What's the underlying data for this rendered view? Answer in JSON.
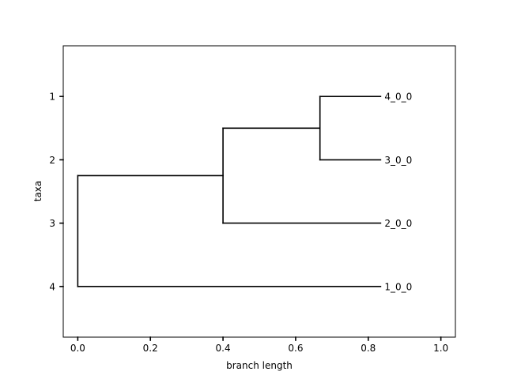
{
  "figure": {
    "xlabel": "branch length",
    "ylabel": "taxa",
    "x_ticks": [
      "0.0",
      "0.2",
      "0.4",
      "0.6",
      "0.8",
      "1.0"
    ],
    "y_ticks": [
      "1",
      "2",
      "3",
      "4"
    ],
    "colors": {
      "line": "#000000",
      "background": "#ffffff"
    }
  },
  "tree": {
    "xlim": [
      -0.04,
      1.04
    ],
    "ylim": [
      4.8,
      0.2
    ],
    "x_tick_values": [
      0.0,
      0.2,
      0.4,
      0.6,
      0.8,
      1.0
    ],
    "y_tick_values": [
      1,
      2,
      3,
      4
    ],
    "leaves": [
      {
        "label": "4_0_0",
        "y": 1,
        "x": 0.834
      },
      {
        "label": "3_0_0",
        "y": 2,
        "x": 0.834
      },
      {
        "label": "2_0_0",
        "y": 3,
        "x": 0.834
      },
      {
        "label": "1_0_0",
        "y": 4,
        "x": 0.834
      }
    ],
    "nodes": [
      {
        "id": "n_43",
        "x": 0.667,
        "y_min": 1,
        "y_max": 2,
        "y": 1.5
      },
      {
        "id": "n_432",
        "x": 0.4,
        "y_min": 1.5,
        "y_max": 3,
        "y": 2.25
      },
      {
        "id": "root",
        "x": 0.0,
        "y_min": 2.25,
        "y_max": 4,
        "y": 3.125
      }
    ],
    "branches": [
      {
        "from_x": 0.667,
        "to_x": 0.834,
        "y": 1
      },
      {
        "from_x": 0.667,
        "to_x": 0.834,
        "y": 2
      },
      {
        "from_x": 0.4,
        "to_x": 0.667,
        "y": 1.5
      },
      {
        "from_x": 0.4,
        "to_x": 0.834,
        "y": 3
      },
      {
        "from_x": 0.0,
        "to_x": 0.4,
        "y": 2.25
      },
      {
        "from_x": 0.0,
        "to_x": 0.834,
        "y": 4
      }
    ]
  }
}
